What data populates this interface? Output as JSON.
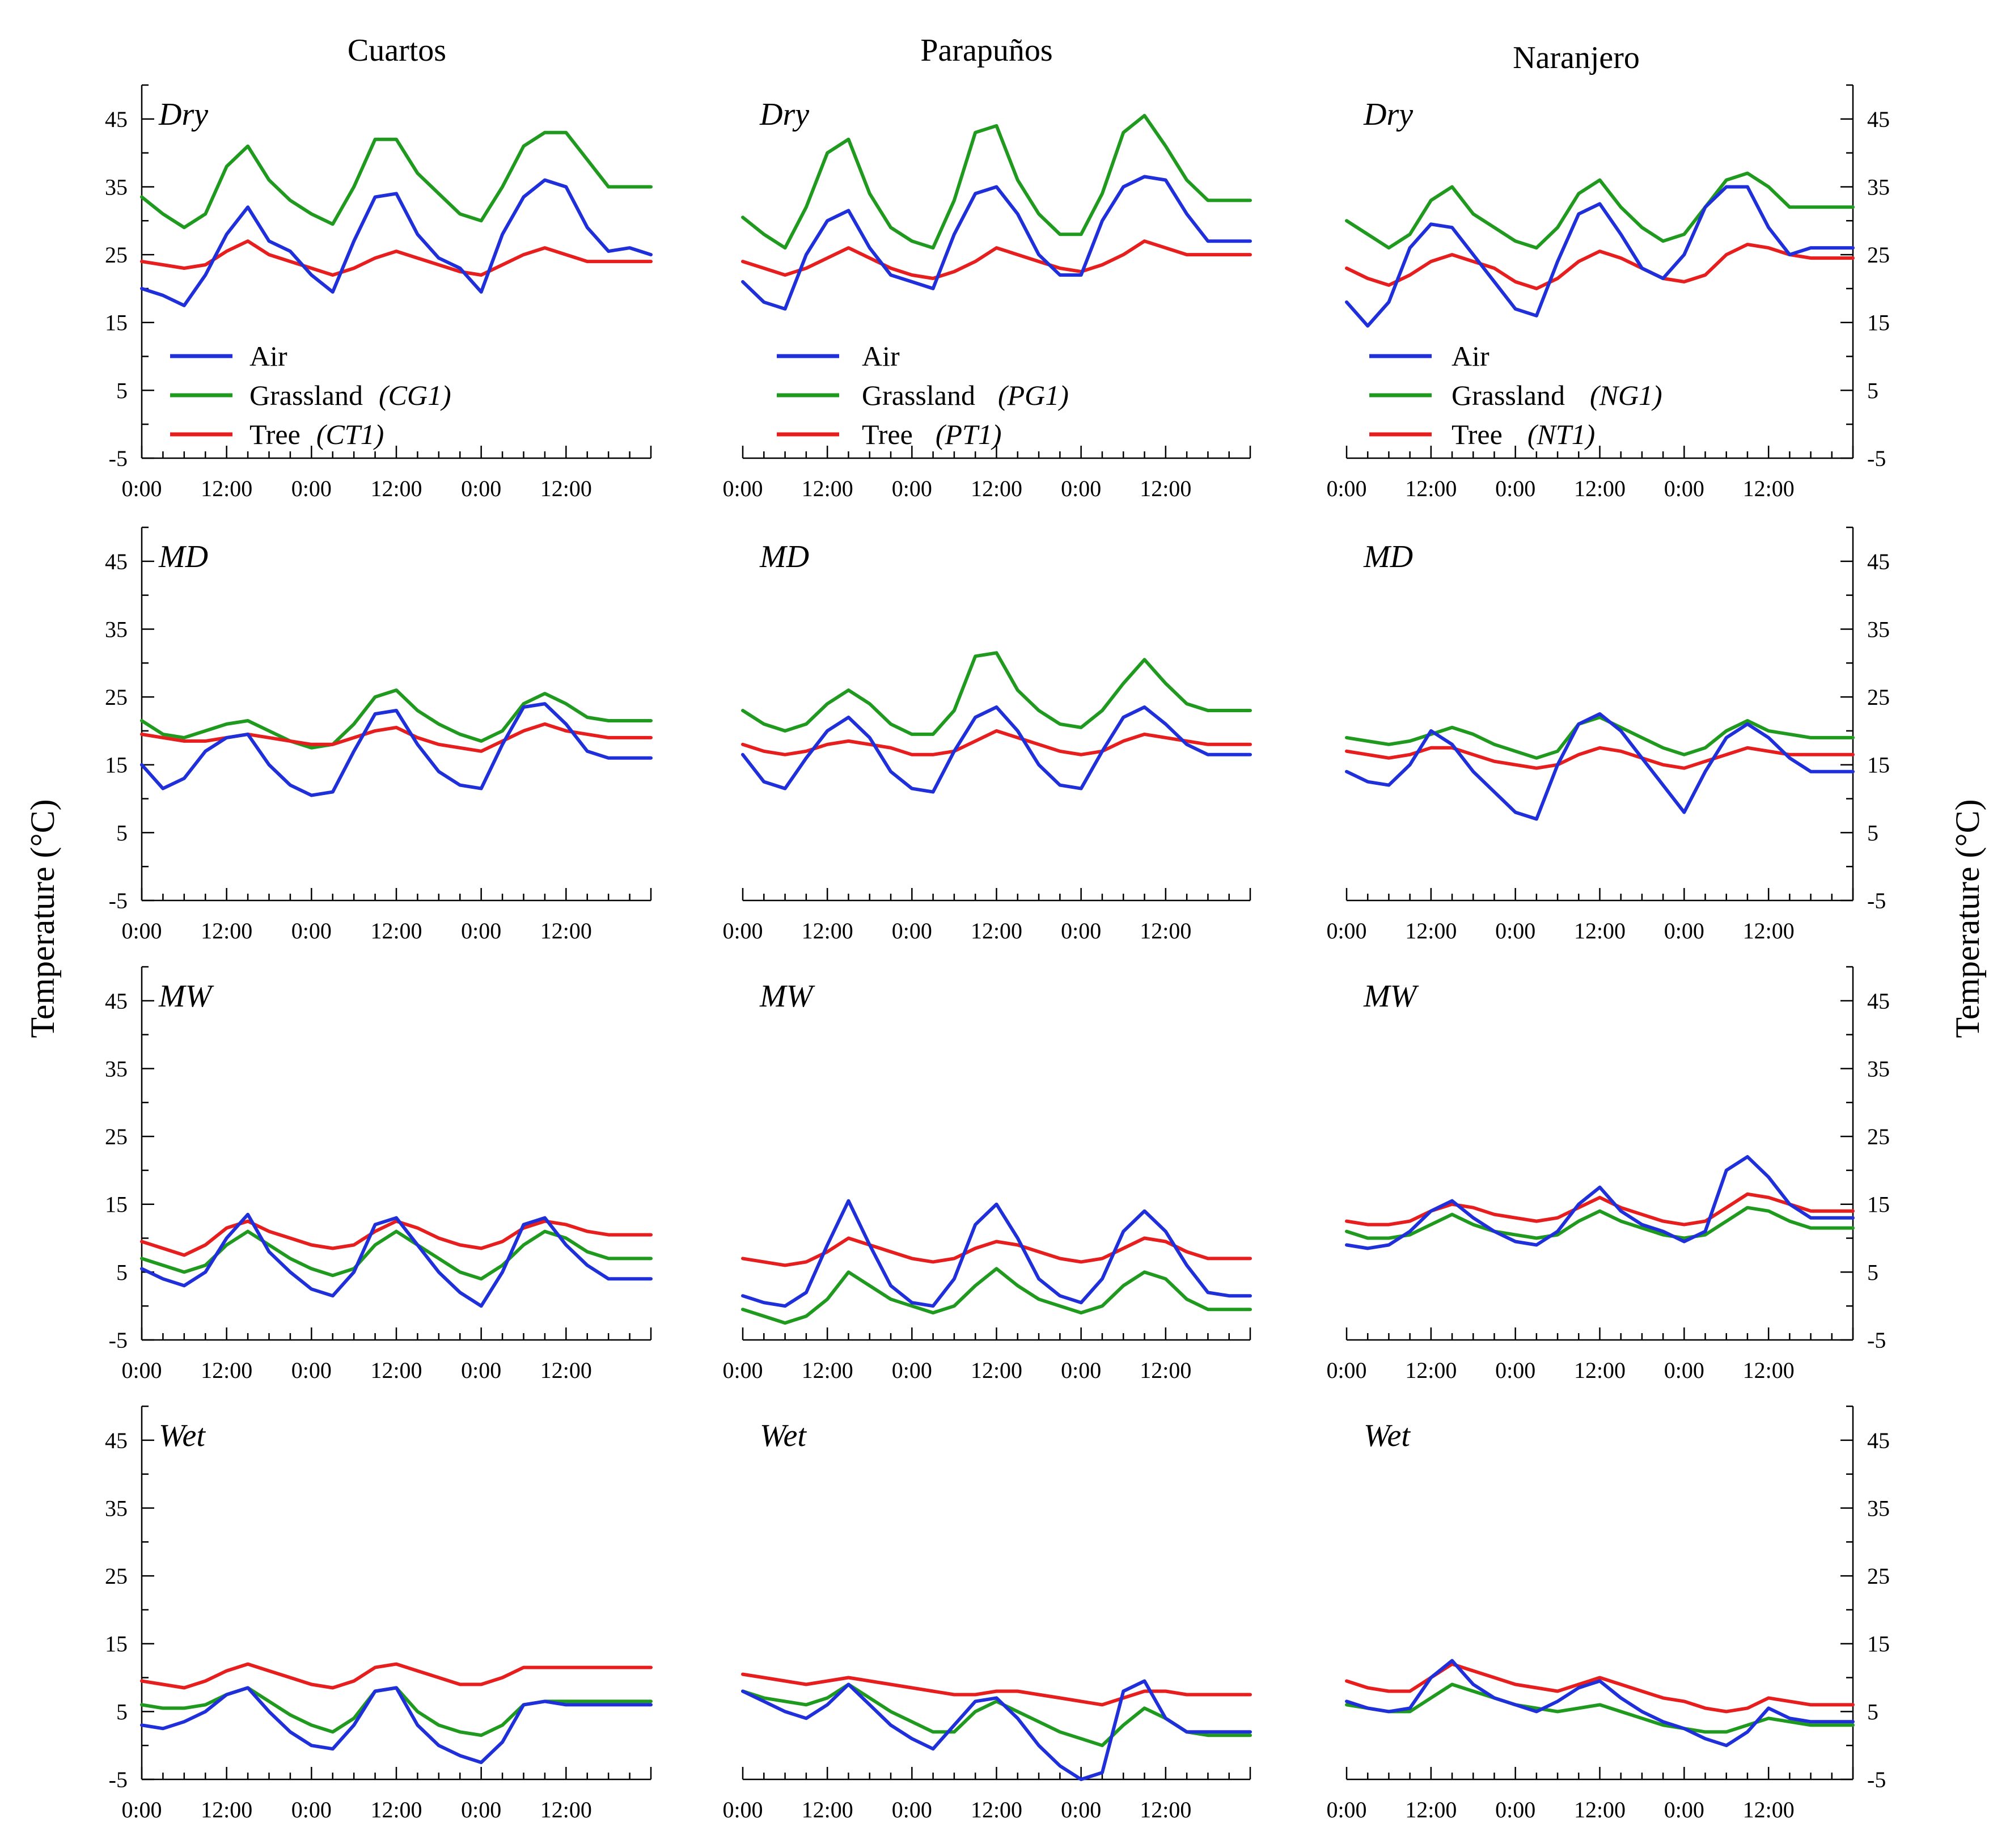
{
  "figure": {
    "y_axis_title_left": "Temperature (°C)",
    "y_axis_title_right": "Temperature (°C)"
  },
  "colors": {
    "Air": "#1f2fd9",
    "Grassland": "#1f9a1f",
    "Tree": "#e61e1e"
  },
  "legend": [
    {
      "Cuartos": [
        "Air",
        "Grassland",
        "Tree"
      ],
      "codes": [
        "",
        "(CG1)",
        "(CT1)"
      ]
    },
    {
      "Parapuños": [
        "Air",
        "Grassland",
        "Tree"
      ],
      "codes": [
        "",
        "(PG1)",
        "(PT1)"
      ]
    },
    {
      "Naranjero": [
        "Air",
        "Grassland",
        "Tree"
      ],
      "codes": [
        "",
        "(NG1)",
        "(NT1)"
      ]
    }
  ],
  "legend_entries": {
    "air": "Air",
    "grass": "Grassland",
    "tree": "Tree",
    "codes_grass": [
      "(CG1)",
      "(PG1)",
      "(NG1)"
    ],
    "codes_tree": [
      "(CT1)",
      "(PT1)",
      "(NT1)"
    ]
  },
  "chart_data": {
    "type": "line",
    "sites": [
      "Cuartos",
      "Parapuños",
      "Naranjero"
    ],
    "seasons": [
      "Dry",
      "MD",
      "MW",
      "Wet"
    ],
    "ylabel": "Temperature (°C)",
    "ylim": [
      -5,
      50
    ],
    "yticks": [
      "45",
      "35",
      "25",
      "15",
      "5",
      "-5"
    ],
    "ytick_values": [
      45,
      35,
      25,
      15,
      5,
      -5
    ],
    "xlim_hours": [
      0,
      72
    ],
    "xticks": [
      "0:00",
      "12:00",
      "0:00",
      "12:00",
      "0:00",
      "12:00"
    ],
    "xtick_hours": [
      0,
      12,
      24,
      36,
      48,
      60
    ],
    "x_hours": [
      0,
      3,
      6,
      9,
      12,
      15,
      18,
      21,
      24,
      27,
      30,
      33,
      36,
      39,
      42,
      45,
      48,
      51,
      54,
      57,
      60,
      63,
      66,
      69,
      72
    ],
    "panels": [
      {
        "site": "Cuartos",
        "season": "Dry",
        "Air": [
          20,
          19,
          17.5,
          22,
          28,
          32,
          27,
          25.5,
          22,
          19.5,
          27,
          33.5,
          34,
          28,
          24.5,
          23,
          19.5,
          28,
          33.5,
          36,
          35,
          29,
          25.5,
          26,
          25
        ],
        "Grassland": [
          33.5,
          31,
          29,
          31,
          38,
          41,
          36,
          33,
          31,
          29.5,
          35,
          42,
          42,
          37,
          34,
          31,
          30,
          35,
          41,
          43,
          43,
          39,
          35,
          35,
          35
        ],
        "Tree": [
          24,
          23.5,
          23,
          23.5,
          25.5,
          27,
          25,
          24,
          23,
          22,
          23,
          24.5,
          25.5,
          24.5,
          23.5,
          22.5,
          22,
          23.5,
          25,
          26,
          25,
          24,
          24,
          24,
          24
        ]
      },
      {
        "site": "Parapuños",
        "season": "Dry",
        "Air": [
          21,
          18,
          17,
          25,
          30,
          31.5,
          26,
          22,
          21,
          20,
          28,
          34,
          35,
          31,
          25,
          22,
          22,
          30,
          35,
          36.5,
          36,
          31,
          27,
          27,
          27
        ],
        "Grassland": [
          30.5,
          28,
          26,
          32,
          40,
          42,
          34,
          29,
          27,
          26,
          33,
          43,
          44,
          36,
          31,
          28,
          28,
          34,
          43,
          45.5,
          41,
          36,
          33,
          33,
          33
        ],
        "Tree": [
          24,
          23,
          22,
          23,
          24.5,
          26,
          24.5,
          23,
          22,
          21.5,
          22.5,
          24,
          26,
          25,
          24,
          23,
          22.5,
          23.5,
          25,
          27,
          26,
          25,
          25,
          25,
          25
        ]
      },
      {
        "site": "Naranjero",
        "season": "Dry",
        "Air": [
          18,
          14.5,
          18,
          26,
          29.5,
          29,
          25,
          21,
          17,
          16,
          24,
          31,
          32.5,
          28,
          23,
          21.5,
          25,
          32,
          35,
          35,
          29,
          25,
          26,
          26,
          26
        ],
        "Grassland": [
          30,
          28,
          26,
          28,
          33,
          35,
          31,
          29,
          27,
          26,
          29,
          34,
          36,
          32,
          29,
          27,
          28,
          32,
          36,
          37,
          35,
          32,
          32,
          32,
          32
        ],
        "Tree": [
          23,
          21.5,
          20.5,
          22,
          24,
          25,
          24,
          23,
          21,
          20,
          21.5,
          24,
          25.5,
          24.5,
          23,
          21.5,
          21,
          22,
          25,
          26.5,
          26,
          25,
          24.5,
          24.5,
          24.5
        ]
      },
      {
        "site": "Cuartos",
        "season": "MD",
        "Air": [
          15,
          11.5,
          13,
          17,
          19,
          19.5,
          15,
          12,
          10.5,
          11,
          17,
          22.5,
          23,
          18,
          14,
          12,
          11.5,
          18,
          23.5,
          24,
          21,
          17,
          16,
          16,
          16
        ],
        "Grassland": [
          21.5,
          19.5,
          19,
          20,
          21,
          21.5,
          20,
          18.5,
          17.5,
          18,
          21,
          25,
          26,
          23,
          21,
          19.5,
          18.5,
          20,
          24,
          25.5,
          24,
          22,
          21.5,
          21.5,
          21.5
        ],
        "Tree": [
          19.5,
          19,
          18.5,
          18.5,
          19,
          19.5,
          19,
          18.5,
          18,
          18,
          19,
          20,
          20.5,
          19,
          18,
          17.5,
          17,
          18.5,
          20,
          21,
          20,
          19.5,
          19,
          19,
          19
        ]
      },
      {
        "site": "Parapuños",
        "season": "MD",
        "Air": [
          16.5,
          12.5,
          11.5,
          16,
          20,
          22,
          19,
          14,
          11.5,
          11,
          17,
          22,
          23.5,
          20,
          15,
          12,
          11.5,
          17,
          22,
          23.5,
          21,
          18,
          16.5,
          16.5,
          16.5
        ],
        "Grassland": [
          23,
          21,
          20,
          21,
          24,
          26,
          24,
          21,
          19.5,
          19.5,
          23,
          31,
          31.5,
          26,
          23,
          21,
          20.5,
          23,
          27,
          30.5,
          27,
          24,
          23,
          23,
          23
        ],
        "Tree": [
          18,
          17,
          16.5,
          17,
          18,
          18.5,
          18,
          17.5,
          16.5,
          16.5,
          17,
          18.5,
          20,
          19,
          18,
          17,
          16.5,
          17,
          18.5,
          19.5,
          19,
          18.5,
          18,
          18,
          18
        ]
      },
      {
        "site": "Naranjero",
        "season": "MD",
        "Air": [
          14,
          12.5,
          12,
          15,
          20,
          18,
          14,
          11,
          8,
          7,
          15,
          21,
          22.5,
          20,
          16,
          12,
          8,
          14,
          19,
          21,
          19,
          16,
          14,
          14,
          14
        ],
        "Grassland": [
          19,
          18.5,
          18,
          18.5,
          19.5,
          20.5,
          19.5,
          18,
          17,
          16,
          17,
          21,
          22,
          20.5,
          19,
          17.5,
          16.5,
          17.5,
          20,
          21.5,
          20,
          19.5,
          19,
          19,
          19
        ],
        "Tree": [
          17,
          16.5,
          16,
          16.5,
          17.5,
          17.5,
          16.5,
          15.5,
          15,
          14.5,
          15,
          16.5,
          17.5,
          17,
          16,
          15,
          14.5,
          15.5,
          16.5,
          17.5,
          17,
          16.5,
          16.5,
          16.5,
          16.5
        ]
      },
      {
        "site": "Cuartos",
        "season": "MW",
        "Air": [
          5.5,
          4,
          3,
          5,
          10,
          13.5,
          8,
          5,
          2.5,
          1.5,
          5,
          12,
          13,
          9,
          5,
          2,
          0,
          5,
          12,
          13,
          9,
          6,
          4,
          4,
          4
        ],
        "Grassland": [
          7,
          6,
          5,
          6,
          9,
          11,
          9,
          7,
          5.5,
          4.5,
          5.5,
          9,
          11,
          9,
          7,
          5,
          4,
          6,
          9,
          11,
          10,
          8,
          7,
          7,
          7
        ],
        "Tree": [
          9.5,
          8.5,
          7.5,
          9,
          11.5,
          12.5,
          11,
          10,
          9,
          8.5,
          9,
          11,
          12.5,
          11.5,
          10,
          9,
          8.5,
          9.5,
          11.5,
          12.5,
          12,
          11,
          10.5,
          10.5,
          10.5
        ]
      },
      {
        "site": "Parapuños",
        "season": "MW",
        "Air": [
          1.5,
          0.5,
          0,
          2,
          9,
          15.5,
          9,
          3,
          0.5,
          0,
          4,
          12,
          15,
          10,
          4,
          1.5,
          0.5,
          4,
          11,
          14,
          11,
          6,
          2,
          1.5,
          1.5
        ],
        "Grassland": [
          -0.5,
          -1.5,
          -2.5,
          -1.5,
          1,
          5,
          3,
          1,
          0,
          -1,
          0,
          3,
          5.5,
          3,
          1,
          0,
          -1,
          0,
          3,
          5,
          4,
          1,
          -0.5,
          -0.5,
          -0.5
        ],
        "Tree": [
          7,
          6.5,
          6,
          6.5,
          8,
          10,
          9,
          8,
          7,
          6.5,
          7,
          8.5,
          9.5,
          9,
          8,
          7,
          6.5,
          7,
          8.5,
          10,
          9.5,
          8,
          7,
          7,
          7
        ]
      },
      {
        "site": "Naranjero",
        "season": "MW",
        "Air": [
          9,
          8.5,
          9,
          11,
          14,
          15.5,
          13,
          11,
          9.5,
          9,
          11,
          15,
          17.5,
          14,
          12,
          11,
          9.5,
          11,
          20,
          22,
          19,
          15,
          13,
          13,
          13
        ],
        "Grassland": [
          11,
          10,
          10,
          10.5,
          12,
          13.5,
          12,
          11,
          10.5,
          10,
          10.5,
          12.5,
          14,
          12.5,
          11.5,
          10.5,
          10,
          10.5,
          12.5,
          14.5,
          14,
          12.5,
          11.5,
          11.5,
          11.5
        ],
        "Tree": [
          12.5,
          12,
          12,
          12.5,
          14,
          15,
          14.5,
          13.5,
          13,
          12.5,
          13,
          14.5,
          16,
          14.5,
          13.5,
          12.5,
          12,
          12.5,
          14.5,
          16.5,
          16,
          15,
          14,
          14,
          14
        ]
      },
      {
        "site": "Cuartos",
        "season": "Wet",
        "Air": [
          3,
          2.5,
          3.5,
          5,
          7.5,
          8.5,
          5,
          2,
          0,
          -0.5,
          3,
          8,
          8.5,
          3,
          0,
          -1.5,
          -2.5,
          0.5,
          6,
          6.5,
          6,
          6,
          6,
          6,
          6
        ],
        "Grassland": [
          6,
          5.5,
          5.5,
          6,
          7.5,
          8.5,
          6.5,
          4.5,
          3,
          2,
          4,
          8,
          8.5,
          5,
          3,
          2,
          1.5,
          3,
          6,
          6.5,
          6.5,
          6.5,
          6.5,
          6.5,
          6.5
        ],
        "Tree": [
          9.5,
          9,
          8.5,
          9.5,
          11,
          12,
          11,
          10,
          9,
          8.5,
          9.5,
          11.5,
          12,
          11,
          10,
          9,
          9,
          10,
          11.5,
          11.5,
          11.5,
          11.5,
          11.5,
          11.5,
          11.5
        ]
      },
      {
        "site": "Parapuños",
        "season": "Wet",
        "Air": [
          8,
          6.5,
          5,
          4,
          6,
          9,
          6,
          3,
          1,
          -0.5,
          3,
          6.5,
          7,
          4,
          0,
          -3,
          -5,
          -4,
          8,
          9.5,
          4,
          2,
          2,
          2,
          2
        ],
        "Grassland": [
          8,
          7,
          6.5,
          6,
          7,
          9,
          7,
          5,
          3.5,
          2,
          2,
          5,
          6.5,
          5,
          3.5,
          2,
          1,
          0,
          3,
          5.5,
          4,
          2,
          1.5,
          1.5,
          1.5
        ],
        "Tree": [
          10.5,
          10,
          9.5,
          9,
          9.5,
          10,
          9.5,
          9,
          8.5,
          8,
          7.5,
          7.5,
          8,
          8,
          7.5,
          7,
          6.5,
          6,
          7,
          8,
          8,
          7.5,
          7.5,
          7.5,
          7.5
        ]
      },
      {
        "site": "Naranjero",
        "season": "Wet",
        "Air": [
          6.5,
          5.5,
          5,
          5.5,
          10,
          12.5,
          9,
          7,
          6,
          5,
          6.5,
          8.5,
          9.5,
          7,
          5,
          3.5,
          2.5,
          1,
          0,
          2,
          5.5,
          4,
          3.5,
          3.5,
          3.5
        ],
        "Grassland": [
          6,
          5.5,
          5,
          5,
          7,
          9,
          8,
          7,
          6,
          5.5,
          5,
          5.5,
          6,
          5,
          4,
          3,
          2.5,
          2,
          2,
          3,
          4,
          3.5,
          3,
          3,
          3
        ],
        "Tree": [
          9.5,
          8.5,
          8,
          8,
          10,
          12,
          11,
          10,
          9,
          8.5,
          8,
          9,
          10,
          9,
          8,
          7,
          6.5,
          5.5,
          5,
          5.5,
          7,
          6.5,
          6,
          6,
          6
        ]
      }
    ]
  }
}
